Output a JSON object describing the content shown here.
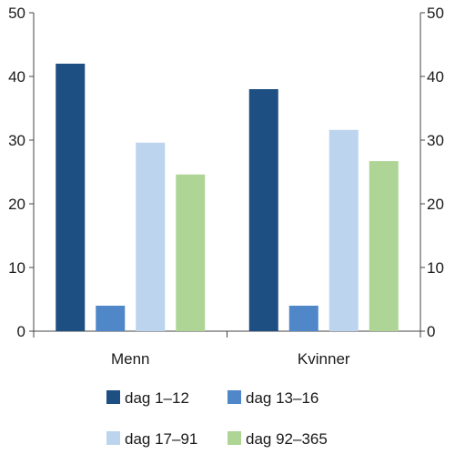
{
  "chart_data": {
    "type": "bar",
    "title": "",
    "xlabel": "",
    "ylabel": "",
    "ylim": [
      0,
      50
    ],
    "yticks": [
      0,
      10,
      20,
      30,
      40,
      50
    ],
    "secondary_y_axis": true,
    "grid": false,
    "legend_position": "bottom",
    "categories": [
      "Menn",
      "Kvinner"
    ],
    "series": [
      {
        "name": "dag 1–12",
        "color": "#1d4f82",
        "values": [
          42,
          38
        ]
      },
      {
        "name": "dag 13–16",
        "color": "#4f87c8",
        "values": [
          4,
          4
        ]
      },
      {
        "name": "dag 17–91",
        "color": "#bcd4ee",
        "values": [
          29.6,
          31.6
        ]
      },
      {
        "name": "dag 92–365",
        "color": "#aed595",
        "values": [
          24.6,
          26.7
        ]
      }
    ]
  }
}
